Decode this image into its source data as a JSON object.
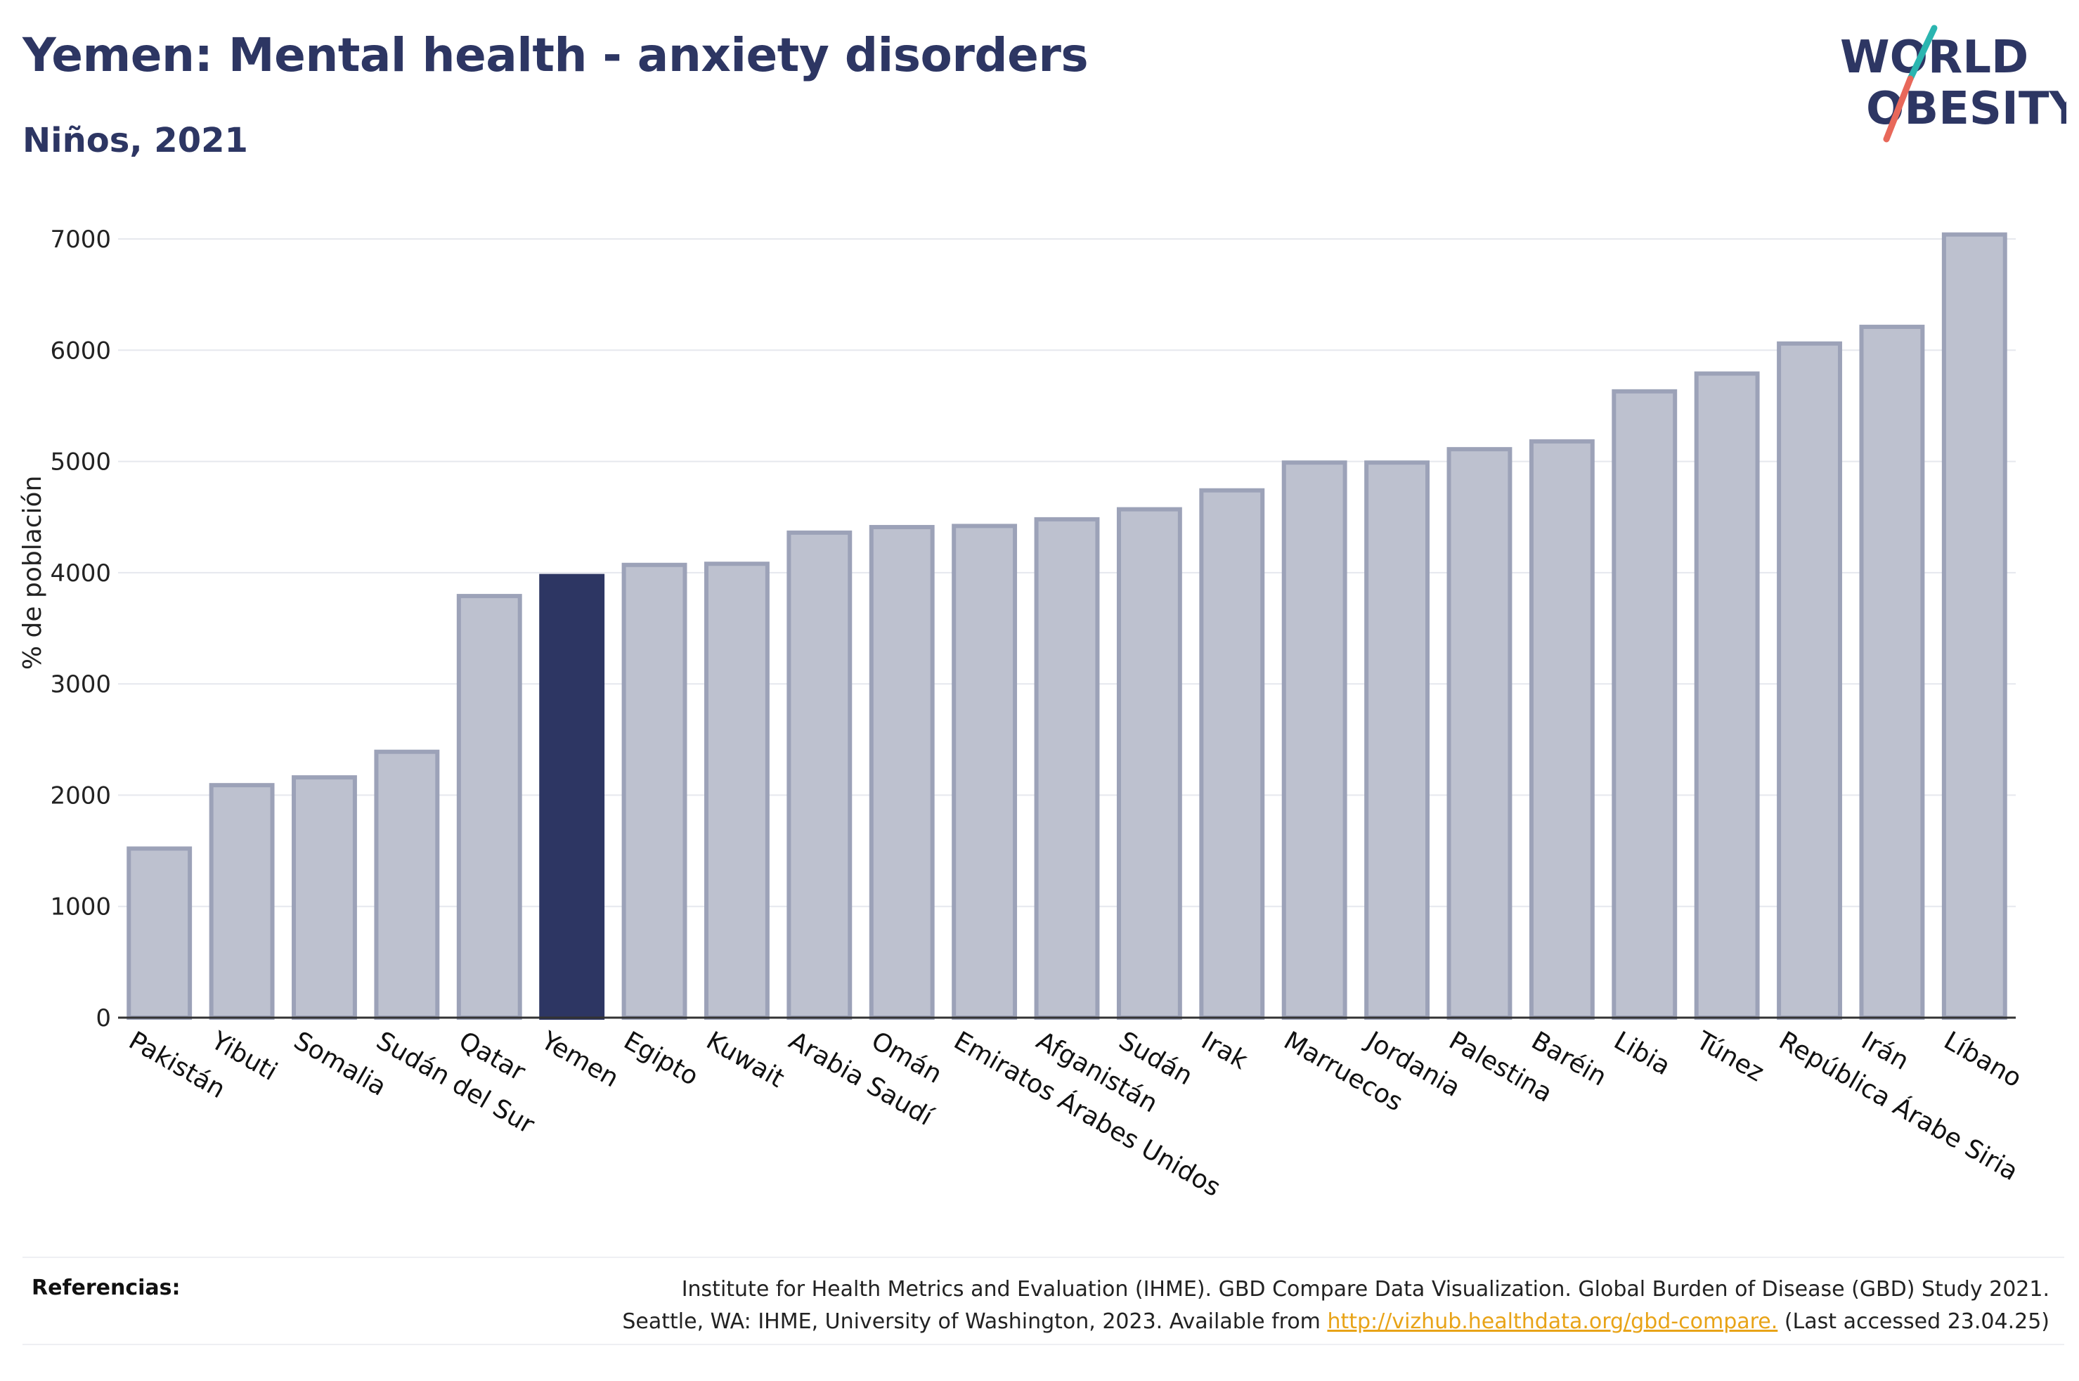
{
  "header": {
    "title": "Yemen: Mental health - anxiety disorders",
    "subtitle": "Niños, 2021"
  },
  "logo": {
    "line1": "WORLD",
    "line2": "OBESITY",
    "colors": {
      "text": "#2d3663",
      "slash_top": "#2bb5b0",
      "slash_bottom": "#e8685a"
    }
  },
  "chart_data": {
    "type": "bar",
    "title": "Yemen: Mental health - anxiety disorders",
    "subtitle": "Niños, 2021",
    "ylabel": "% de población",
    "xlabel": "",
    "ylim": [
      0,
      7300
    ],
    "yticks": [
      0,
      1000,
      2000,
      3000,
      4000,
      5000,
      6000,
      7000
    ],
    "grid": true,
    "highlight": "Yemen",
    "categories": [
      "Pakistán",
      "Yibuti",
      "Somalia",
      "Sudán del Sur",
      "Qatar",
      "Yemen",
      "Egipto",
      "Kuwait",
      "Arabia Saudí",
      "Omán",
      "Emiratos Árabes Unidos",
      "Afganistán",
      "Sudán",
      "Irak",
      "Marruecos",
      "Jordania",
      "Palestina",
      "Baréin",
      "Libia",
      "Túnez",
      "República Árabe Siria",
      "Irán",
      "Líbano"
    ],
    "values": [
      1520,
      2090,
      2160,
      2390,
      3790,
      3970,
      4070,
      4080,
      4360,
      4410,
      4420,
      4480,
      4570,
      4740,
      4990,
      4990,
      5110,
      5180,
      5630,
      5790,
      6060,
      6210,
      7040
    ],
    "colors": {
      "bar": "#bdc1cf",
      "bar_border": "#9ca2b8",
      "highlight": "#2d3663",
      "grid": "#e6e8ee",
      "axis": "#333333"
    }
  },
  "references": {
    "label": "Referencias:",
    "line1": "Institute for Health Metrics and Evaluation (IHME). GBD Compare Data Visualization. Global Burden of Disease (GBD) Study 2021.",
    "line2_prefix": "Seattle, WA: IHME, University of Washington, 2023. Available from ",
    "link": "http://vizhub.healthdata.org/gbd-compare.",
    "line2_suffix": " (Last accessed 23.04.25)"
  }
}
